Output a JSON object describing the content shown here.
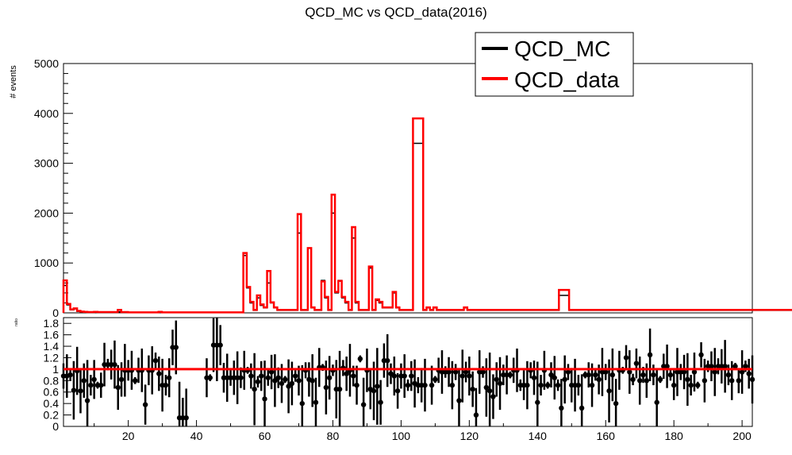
{
  "chart_data": [
    {
      "type": "histogram",
      "title": "QCD_MC vs QCD_data(2016)",
      "ylabel": "# events",
      "xlim": [
        1,
        203
      ],
      "ylim": [
        0,
        5000
      ],
      "yticks": [
        0,
        1000,
        2000,
        3000,
        4000,
        5000
      ],
      "legend_placement": "top-right",
      "series": [
        {
          "name": "QCD_MC",
          "color": "#000000",
          "values": [
            550,
            160,
            60,
            80,
            30,
            20,
            15,
            10,
            10,
            15,
            10,
            10,
            10,
            10,
            10,
            10,
            20,
            10,
            10,
            5,
            5,
            5,
            5,
            5,
            5,
            5,
            5,
            5,
            10,
            5,
            5,
            5,
            5,
            5,
            5,
            5,
            5,
            5,
            5,
            5,
            5,
            5,
            5,
            5,
            5,
            5,
            5,
            5,
            5,
            5,
            5,
            5,
            5,
            1150,
            500,
            200,
            50,
            300,
            150,
            100,
            600,
            200,
            100,
            50,
            50,
            50,
            50,
            50,
            50,
            1600,
            50,
            50,
            1300,
            100,
            50,
            50,
            650,
            300,
            50,
            2000,
            400,
            650,
            300,
            200,
            50,
            1500,
            200,
            50,
            50,
            50,
            900,
            50,
            250,
            200,
            100,
            100,
            100,
            400,
            100,
            50,
            50,
            50,
            50,
            3400,
            3400,
            3400,
            50,
            100,
            50,
            100,
            50,
            50,
            50,
            50,
            50,
            50,
            50,
            50,
            100,
            50,
            50,
            50,
            50,
            50,
            50,
            50,
            50,
            50,
            50,
            50,
            50,
            50,
            50,
            50,
            50,
            50,
            50,
            50,
            50,
            50,
            50,
            50,
            50,
            50,
            50,
            50,
            350,
            350,
            350,
            50,
            50,
            50,
            50,
            50,
            50,
            50,
            50,
            50,
            50,
            50,
            50,
            50,
            50,
            50,
            50,
            50,
            50,
            50,
            50,
            50,
            50,
            50,
            50,
            50,
            50,
            50,
            50,
            50,
            50,
            50,
            50,
            50,
            50,
            50,
            50,
            50,
            50,
            50,
            50,
            50,
            50,
            50,
            50,
            50,
            50,
            50,
            50,
            50,
            50,
            50,
            50,
            50,
            50,
            50,
            50,
            50,
            50,
            50,
            50,
            50,
            50,
            50,
            50,
            50,
            50,
            50,
            50,
            50,
            50
          ]
        },
        {
          "name": "QCD_data",
          "color": "#ff0000",
          "values": [
            650,
            180,
            70,
            90,
            40,
            25,
            20,
            15,
            15,
            20,
            15,
            15,
            15,
            15,
            15,
            15,
            60,
            15,
            15,
            10,
            10,
            10,
            10,
            10,
            10,
            10,
            10,
            10,
            20,
            10,
            10,
            10,
            10,
            10,
            10,
            10,
            10,
            10,
            10,
            10,
            10,
            10,
            10,
            10,
            10,
            10,
            10,
            10,
            10,
            10,
            10,
            10,
            10,
            1200,
            520,
            220,
            60,
            350,
            170,
            110,
            840,
            210,
            110,
            60,
            60,
            60,
            60,
            60,
            60,
            1980,
            60,
            60,
            1300,
            110,
            60,
            60,
            630,
            320,
            60,
            2370,
            420,
            640,
            320,
            220,
            60,
            1720,
            220,
            60,
            60,
            60,
            930,
            60,
            270,
            220,
            110,
            110,
            110,
            420,
            110,
            60,
            60,
            60,
            60,
            3900,
            3900,
            3900,
            60,
            110,
            60,
            110,
            60,
            60,
            60,
            60,
            60,
            60,
            60,
            60,
            110,
            60,
            60,
            60,
            60,
            60,
            60,
            60,
            60,
            60,
            60,
            60,
            60,
            60,
            60,
            60,
            60,
            60,
            60,
            60,
            60,
            60,
            60,
            60,
            60,
            60,
            60,
            60,
            460,
            460,
            460,
            60,
            60,
            60,
            60,
            60,
            60,
            60,
            60,
            60,
            60,
            60,
            60,
            60,
            60,
            60,
            60,
            60,
            60,
            60,
            60,
            60,
            60,
            60,
            60,
            60,
            60,
            60,
            60,
            60,
            60,
            60,
            60,
            60,
            60,
            60,
            60,
            60,
            60,
            60,
            60,
            60,
            60,
            60,
            60,
            60,
            60,
            60,
            60,
            60,
            60,
            60,
            60,
            60,
            60,
            60,
            60,
            60,
            60,
            60,
            60,
            60,
            60,
            60,
            60,
            60,
            60,
            60,
            60,
            60,
            60
          ]
        }
      ]
    },
    {
      "type": "scatter",
      "ylabel": "ratio",
      "xlim": [
        1,
        203
      ],
      "ylim": [
        0,
        1.9
      ],
      "xticks": [
        20,
        40,
        60,
        80,
        100,
        120,
        140,
        160,
        180,
        200
      ],
      "yticks": [
        0,
        0.2,
        0.4,
        0.6,
        0.8,
        1,
        1.2,
        1.4,
        1.6,
        1.8
      ],
      "reference_line": 1,
      "points": [
        [
          1,
          0.88
        ],
        [
          2,
          0.88
        ],
        [
          3,
          0.9
        ],
        [
          4,
          0.63
        ],
        [
          5,
          0.97
        ],
        [
          6,
          0.62
        ],
        [
          7,
          0.8
        ],
        [
          8,
          0.45
        ],
        [
          9,
          0.72
        ],
        [
          10,
          0.82
        ],
        [
          11,
          0.72
        ],
        [
          12,
          0.72
        ],
        [
          13,
          1.08
        ],
        [
          14,
          1.08
        ],
        [
          15,
          1.08
        ],
        [
          16,
          1.08
        ],
        [
          17,
          0.68
        ],
        [
          18,
          0.82
        ],
        [
          19,
          0.98
        ],
        [
          20,
          0.98
        ],
        [
          21,
          0.98
        ],
        [
          22,
          0.8
        ],
        [
          23,
          0.98
        ],
        [
          24,
          0.98
        ],
        [
          25,
          0.38
        ],
        [
          26,
          0.98
        ],
        [
          27,
          0.98
        ],
        [
          28,
          1.15
        ],
        [
          29,
          0.92
        ],
        [
          30,
          0.72
        ],
        [
          31,
          0.72
        ],
        [
          32,
          0.85
        ],
        [
          33,
          1.38
        ],
        [
          34,
          1.38
        ],
        [
          35,
          0.15
        ],
        [
          36,
          0.15
        ],
        [
          37,
          0.15
        ],
        [
          43,
          0.85
        ],
        [
          44,
          0.85
        ],
        [
          45,
          1.42
        ],
        [
          46,
          1.42
        ],
        [
          47,
          1.42
        ],
        [
          48,
          0.85
        ],
        [
          49,
          0.85
        ],
        [
          50,
          0.85
        ],
        [
          51,
          0.85
        ],
        [
          52,
          0.85
        ],
        [
          53,
          0.85
        ],
        [
          54,
          0.98
        ],
        [
          55,
          0.98
        ],
        [
          56,
          0.88
        ],
        [
          57,
          0.65
        ],
        [
          58,
          0.78
        ],
        [
          59,
          0.88
        ],
        [
          60,
          0.48
        ],
        [
          61,
          0.85
        ],
        [
          62,
          0.95
        ],
        [
          63,
          0.8
        ],
        [
          64,
          0.85
        ],
        [
          65,
          0.75
        ],
        [
          66,
          0.82
        ],
        [
          67,
          0.7
        ],
        [
          68,
          0.75
        ],
        [
          69,
          0.88
        ],
        [
          70,
          0.8
        ],
        [
          71,
          0.4
        ],
        [
          72,
          0.98
        ],
        [
          73,
          0.82
        ],
        [
          74,
          0.8
        ],
        [
          75,
          0.42
        ],
        [
          76,
          1.03
        ],
        [
          77,
          1.03
        ],
        [
          78,
          0.68
        ],
        [
          79,
          0.85
        ],
        [
          80,
          0.98
        ],
        [
          81,
          0.65
        ],
        [
          82,
          0.65
        ],
        [
          83,
          1.02
        ],
        [
          84,
          0.92
        ],
        [
          85,
          0.98
        ],
        [
          86,
          0.88
        ],
        [
          87,
          0.72
        ],
        [
          88,
          1.18
        ],
        [
          89,
          0.38
        ],
        [
          90,
          0.98
        ],
        [
          91,
          0.65
        ],
        [
          92,
          0.62
        ],
        [
          93,
          0.7
        ],
        [
          94,
          0.42
        ],
        [
          95,
          1.15
        ],
        [
          96,
          1.15
        ],
        [
          97,
          0.92
        ],
        [
          98,
          0.88
        ],
        [
          99,
          0.62
        ],
        [
          100,
          0.88
        ],
        [
          101,
          0.88
        ],
        [
          102,
          0.72
        ],
        [
          103,
          0.88
        ],
        [
          104,
          0.75
        ],
        [
          105,
          0.72
        ],
        [
          106,
          0.72
        ],
        [
          107,
          0.72
        ],
        [
          109,
          0.72
        ],
        [
          110,
          0.82
        ],
        [
          111,
          0.98
        ],
        [
          112,
          0.95
        ],
        [
          113,
          0.95
        ],
        [
          114,
          0.95
        ],
        [
          115,
          0.72
        ],
        [
          116,
          0.95
        ],
        [
          117,
          0.45
        ],
        [
          118,
          0.88
        ],
        [
          119,
          0.95
        ],
        [
          120,
          0.88
        ],
        [
          121,
          0.65
        ],
        [
          122,
          0.2
        ],
        [
          123,
          0.95
        ],
        [
          124,
          0.95
        ],
        [
          125,
          0.68
        ],
        [
          126,
          0.62
        ],
        [
          127,
          0.52
        ],
        [
          128,
          0.82
        ],
        [
          129,
          0.75
        ],
        [
          130,
          0.9
        ],
        [
          131,
          0.9
        ],
        [
          132,
          0.9
        ],
        [
          133,
          0.98
        ],
        [
          134,
          0.98
        ],
        [
          135,
          0.72
        ],
        [
          136,
          0.72
        ],
        [
          137,
          0.72
        ],
        [
          138,
          0.98
        ],
        [
          139,
          0.85
        ],
        [
          140,
          0.42
        ],
        [
          141,
          0.72
        ],
        [
          142,
          0.98
        ],
        [
          143,
          0.72
        ],
        [
          144,
          0.9
        ],
        [
          145,
          0.85
        ],
        [
          146,
          0.72
        ],
        [
          147,
          0.32
        ],
        [
          148,
          0.82
        ],
        [
          149,
          0.95
        ],
        [
          150,
          0.72
        ],
        [
          151,
          0.72
        ],
        [
          152,
          0.72
        ],
        [
          153,
          0.32
        ],
        [
          154,
          0.9
        ],
        [
          155,
          0.9
        ],
        [
          156,
          0.72
        ],
        [
          157,
          0.9
        ],
        [
          158,
          0.82
        ],
        [
          159,
          0.95
        ],
        [
          160,
          0.95
        ],
        [
          161,
          0.62
        ],
        [
          162,
          0.9
        ],
        [
          163,
          0.4
        ],
        [
          164,
          0.98
        ],
        [
          165,
          0.98
        ],
        [
          166,
          1.2
        ],
        [
          167,
          0.95
        ],
        [
          168,
          0.82
        ],
        [
          169,
          1.1
        ],
        [
          170,
          0.8
        ],
        [
          171,
          0.9
        ],
        [
          172,
          0.8
        ],
        [
          173,
          1.25
        ],
        [
          174,
          0.9
        ],
        [
          175,
          0.42
        ],
        [
          176,
          0.82
        ],
        [
          177,
          1.05
        ],
        [
          178,
          1.05
        ],
        [
          179,
          0.9
        ],
        [
          180,
          0.72
        ],
        [
          181,
          0.95
        ],
        [
          182,
          0.95
        ],
        [
          183,
          0.95
        ],
        [
          184,
          0.82
        ],
        [
          185,
          0.72
        ],
        [
          186,
          0.95
        ],
        [
          187,
          0.72
        ],
        [
          188,
          1.25
        ],
        [
          189,
          0.8
        ],
        [
          190,
          1.05
        ],
        [
          191,
          1.05
        ],
        [
          192,
          0.95
        ],
        [
          193,
          1.05
        ],
        [
          194,
          1.05
        ],
        [
          195,
          1.05
        ],
        [
          196,
          0.9
        ],
        [
          197,
          0.8
        ],
        [
          198,
          1.05
        ],
        [
          199,
          0.8
        ],
        [
          200,
          0.95
        ],
        [
          201,
          1.05
        ],
        [
          202,
          0.92
        ],
        [
          203,
          0.82
        ]
      ]
    }
  ]
}
